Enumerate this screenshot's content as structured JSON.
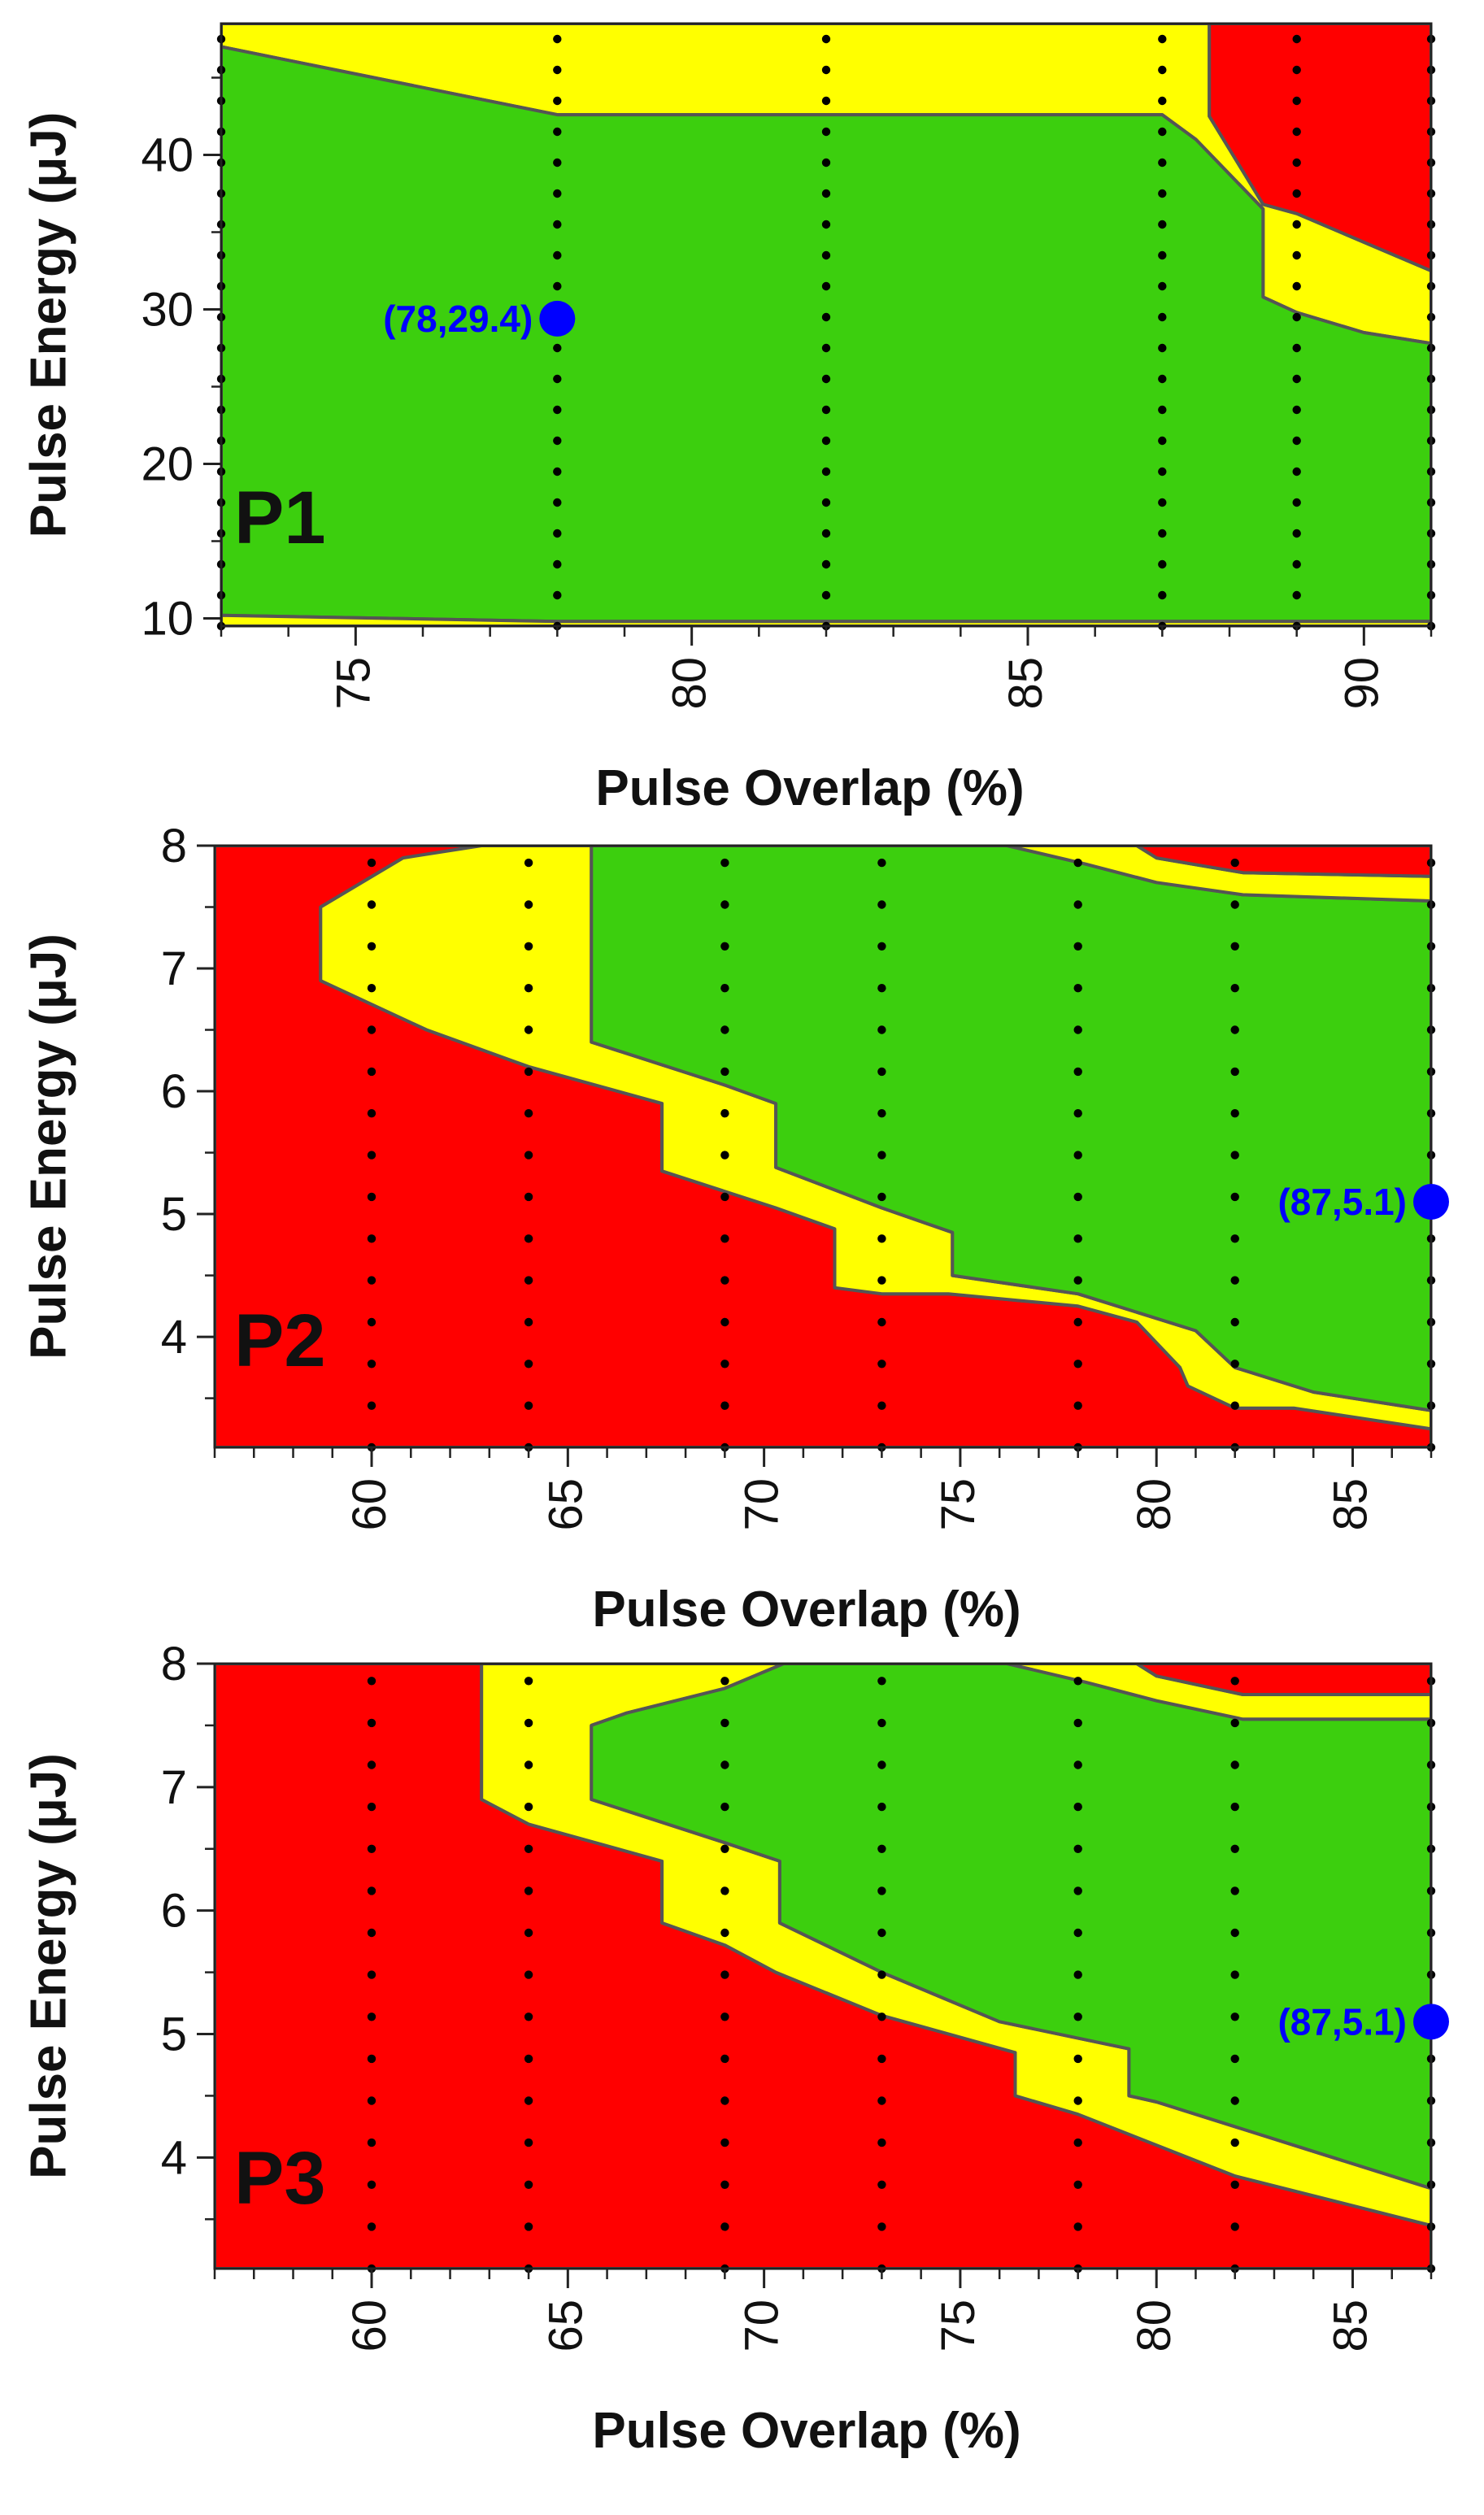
{
  "colors": {
    "red": "#FF0000",
    "yellow": "#FFFF00",
    "green": "#3CCF0E",
    "boundary": "#555555",
    "marker": "#0000FF"
  },
  "chart_data": [
    {
      "id": "P1",
      "type": "contour",
      "panel_label": "P1",
      "xlabel": "Pulse Overlap (%)",
      "ylabel": "Pulse Energy (μJ)",
      "xlim": [
        73,
        91
      ],
      "ylim": [
        9.5,
        48.5
      ],
      "xticks": [
        75,
        80,
        85,
        90
      ],
      "yticks": [
        10,
        20,
        30,
        40
      ],
      "highlight": {
        "x": 78,
        "y": 29.4,
        "label": "(78,29.4)"
      },
      "sample_columns": [
        73,
        78,
        82,
        87,
        89,
        91
      ],
      "sample_rows": [
        9.5,
        11.5,
        13.5,
        15.5,
        17.5,
        19.5,
        21.5,
        23.5,
        25.5,
        27.5,
        29.5,
        31.5,
        33.5,
        35.5,
        37.5,
        39.5,
        41.5,
        43.5,
        45.5,
        47.5
      ],
      "regions": [
        {
          "color": "yellow",
          "points": [
            [
              73,
              48.5
            ],
            [
              87.7,
              48.5
            ],
            [
              87.7,
              42.5
            ],
            [
              88.5,
              36.8
            ],
            [
              89.0,
              36.2
            ],
            [
              91,
              32.5
            ],
            [
              91,
              27.8
            ],
            [
              90,
              28.5
            ],
            [
              89,
              29.8
            ],
            [
              88.5,
              30.8
            ],
            [
              88.5,
              36.5
            ],
            [
              87.5,
              41
            ],
            [
              87,
              42.6
            ],
            [
              78,
              42.6
            ],
            [
              73,
              47
            ]
          ]
        },
        {
          "color": "red",
          "points": [
            [
              87.7,
              48.5
            ],
            [
              91,
              48.5
            ],
            [
              91,
              32.5
            ],
            [
              89.0,
              36.2
            ],
            [
              88.5,
              36.8
            ],
            [
              87.7,
              42.5
            ]
          ]
        },
        {
          "color": "green",
          "points": [
            [
              73,
              47
            ],
            [
              78,
              42.6
            ],
            [
              87,
              42.6
            ],
            [
              87.5,
              41
            ],
            [
              88.5,
              36.5
            ],
            [
              88.5,
              30.8
            ],
            [
              89,
              29.8
            ],
            [
              90,
              28.5
            ],
            [
              91,
              27.8
            ],
            [
              91,
              9.8
            ],
            [
              78,
              9.8
            ],
            [
              73,
              10.2
            ]
          ]
        },
        {
          "color": "yellow",
          "points": [
            [
              73,
              10.2
            ],
            [
              78,
              9.8
            ],
            [
              91,
              9.8
            ],
            [
              91,
              9.5
            ],
            [
              73,
              9.5
            ]
          ]
        }
      ]
    },
    {
      "id": "P2",
      "type": "contour",
      "panel_label": "P2",
      "xlabel": "Pulse Overlap (%)",
      "ylabel": "Pulse Energy (μJ)",
      "xlim": [
        56,
        87
      ],
      "ylim": [
        3.1,
        8
      ],
      "xticks": [
        60,
        65,
        70,
        75,
        80,
        85
      ],
      "yticks": [
        4,
        5,
        6,
        7,
        8
      ],
      "highlight": {
        "x": 87,
        "y": 5.1,
        "label": "(87,5.1)"
      },
      "sample_columns": [
        60,
        64,
        69,
        73,
        78,
        82,
        87
      ],
      "sample_rows": [
        3.1,
        3.44,
        3.78,
        4.12,
        4.46,
        4.8,
        5.14,
        5.48,
        5.82,
        6.16,
        6.5,
        6.84,
        7.18,
        7.52,
        7.86
      ],
      "regions": [
        {
          "color": "red",
          "points": [
            [
              56,
              8
            ],
            [
              56,
              3.1
            ],
            [
              87,
              3.1
            ],
            [
              87,
              3.25
            ],
            [
              83.5,
              3.42
            ],
            [
              82,
              3.42
            ],
            [
              80.8,
              3.6
            ],
            [
              80.6,
              3.75
            ],
            [
              79.5,
              4.12
            ],
            [
              78,
              4.25
            ],
            [
              74.7,
              4.35
            ],
            [
              73,
              4.35
            ],
            [
              71.8,
              4.4
            ],
            [
              71.8,
              4.88
            ],
            [
              70.3,
              5.05
            ],
            [
              67.4,
              5.35
            ],
            [
              67.4,
              5.9
            ],
            [
              64,
              6.2
            ],
            [
              61.4,
              6.5
            ],
            [
              58.7,
              6.9
            ],
            [
              58.7,
              7.5
            ],
            [
              60.8,
              7.9
            ],
            [
              62.8,
              8
            ]
          ]
        },
        {
          "color": "yellow",
          "points": [
            [
              62.8,
              8
            ],
            [
              60.8,
              7.9
            ],
            [
              58.7,
              7.5
            ],
            [
              58.7,
              6.9
            ],
            [
              61.4,
              6.5
            ],
            [
              64,
              6.2
            ],
            [
              67.4,
              5.9
            ],
            [
              67.4,
              5.35
            ],
            [
              70.3,
              5.05
            ],
            [
              71.8,
              4.88
            ],
            [
              71.8,
              4.4
            ],
            [
              73,
              4.35
            ],
            [
              74.7,
              4.35
            ],
            [
              78,
              4.25
            ],
            [
              79.5,
              4.12
            ],
            [
              80.6,
              3.75
            ],
            [
              80.8,
              3.6
            ],
            [
              82,
              3.42
            ],
            [
              83.5,
              3.42
            ],
            [
              87,
              3.25
            ],
            [
              87,
              3.4
            ],
            [
              84,
              3.55
            ],
            [
              82,
              3.75
            ],
            [
              81,
              4.05
            ],
            [
              78,
              4.35
            ],
            [
              74.8,
              4.5
            ],
            [
              74.8,
              4.85
            ],
            [
              73,
              5.05
            ],
            [
              70.3,
              5.38
            ],
            [
              70.3,
              5.9
            ],
            [
              69,
              6.05
            ],
            [
              65.6,
              6.4
            ],
            [
              65.6,
              8
            ]
          ]
        },
        {
          "color": "green",
          "points": [
            [
              65.6,
              8
            ],
            [
              65.6,
              6.4
            ],
            [
              69,
              6.05
            ],
            [
              70.3,
              5.9
            ],
            [
              70.3,
              5.38
            ],
            [
              73,
              5.05
            ],
            [
              74.8,
              4.85
            ],
            [
              74.8,
              4.5
            ],
            [
              78,
              4.35
            ],
            [
              81,
              4.05
            ],
            [
              82,
              3.75
            ],
            [
              84,
              3.55
            ],
            [
              87,
              3.4
            ],
            [
              87,
              7.55
            ],
            [
              82.2,
              7.6
            ],
            [
              80,
              7.7
            ],
            [
              78.2,
              7.85
            ],
            [
              76.2,
              8
            ]
          ]
        },
        {
          "color": "yellow",
          "points": [
            [
              76.2,
              8
            ],
            [
              78.2,
              7.85
            ],
            [
              80,
              7.7
            ],
            [
              82.2,
              7.6
            ],
            [
              87,
              7.55
            ],
            [
              87,
              7.75
            ],
            [
              82.2,
              7.78
            ],
            [
              80,
              7.9
            ],
            [
              79.5,
              8
            ]
          ]
        },
        {
          "color": "red",
          "points": [
            [
              79.5,
              8
            ],
            [
              80,
              7.9
            ],
            [
              82.2,
              7.78
            ],
            [
              87,
              7.75
            ],
            [
              87,
              8
            ]
          ]
        }
      ]
    },
    {
      "id": "P3",
      "type": "contour",
      "panel_label": "P3",
      "xlabel": "Pulse Overlap (%)",
      "ylabel": "Pulse Energy (μJ)",
      "xlim": [
        56,
        87
      ],
      "ylim": [
        3.1,
        8
      ],
      "xticks": [
        60,
        65,
        70,
        75,
        80,
        85
      ],
      "yticks": [
        4,
        5,
        6,
        7,
        8
      ],
      "highlight": {
        "x": 87,
        "y": 5.1,
        "label": "(87,5.1)"
      },
      "sample_columns": [
        60,
        64,
        69,
        73,
        78,
        82,
        87
      ],
      "sample_rows": [
        3.1,
        3.44,
        3.78,
        4.12,
        4.46,
        4.8,
        5.14,
        5.48,
        5.82,
        6.16,
        6.5,
        6.84,
        7.18,
        7.52,
        7.86
      ],
      "regions": [
        {
          "color": "red",
          "points": [
            [
              56,
              8
            ],
            [
              56,
              3.1
            ],
            [
              87,
              3.1
            ],
            [
              87,
              3.45
            ],
            [
              82,
              3.85
            ],
            [
              78,
              4.35
            ],
            [
              76.4,
              4.5
            ],
            [
              76.4,
              4.85
            ],
            [
              73,
              5.15
            ],
            [
              70.3,
              5.5
            ],
            [
              69,
              5.72
            ],
            [
              67.4,
              5.9
            ],
            [
              67.4,
              6.4
            ],
            [
              64,
              6.7
            ],
            [
              62.8,
              6.9
            ],
            [
              62.8,
              8
            ]
          ]
        },
        {
          "color": "yellow",
          "points": [
            [
              62.8,
              8
            ],
            [
              62.8,
              6.9
            ],
            [
              64,
              6.7
            ],
            [
              67.4,
              6.4
            ],
            [
              67.4,
              5.9
            ],
            [
              69,
              5.72
            ],
            [
              70.3,
              5.5
            ],
            [
              73,
              5.15
            ],
            [
              76.4,
              4.85
            ],
            [
              76.4,
              4.5
            ],
            [
              78,
              4.35
            ],
            [
              82,
              3.85
            ],
            [
              87,
              3.45
            ],
            [
              87,
              3.75
            ],
            [
              84,
              4.05
            ],
            [
              80,
              4.45
            ],
            [
              79.3,
              4.5
            ],
            [
              79.3,
              4.88
            ],
            [
              76,
              5.1
            ],
            [
              73,
              5.5
            ],
            [
              70.4,
              5.9
            ],
            [
              70.4,
              6.4
            ],
            [
              69,
              6.55
            ],
            [
              65.6,
              6.9
            ],
            [
              65.6,
              7.5
            ],
            [
              66.5,
              7.6
            ],
            [
              69,
              7.8
            ],
            [
              70.5,
              8
            ]
          ]
        },
        {
          "color": "green",
          "points": [
            [
              70.5,
              8
            ],
            [
              69,
              7.8
            ],
            [
              66.5,
              7.6
            ],
            [
              65.6,
              7.5
            ],
            [
              65.6,
              6.9
            ],
            [
              69,
              6.55
            ],
            [
              70.4,
              6.4
            ],
            [
              70.4,
              5.9
            ],
            [
              73,
              5.5
            ],
            [
              76,
              5.1
            ],
            [
              79.3,
              4.88
            ],
            [
              79.3,
              4.5
            ],
            [
              80,
              4.45
            ],
            [
              84,
              4.05
            ],
            [
              87,
              3.75
            ],
            [
              87,
              7.55
            ],
            [
              82.2,
              7.55
            ],
            [
              80,
              7.7
            ],
            [
              78.2,
              7.85
            ],
            [
              76.2,
              8
            ]
          ]
        },
        {
          "color": "yellow",
          "points": [
            [
              76.2,
              8
            ],
            [
              78.2,
              7.85
            ],
            [
              80,
              7.7
            ],
            [
              82.2,
              7.55
            ],
            [
              87,
              7.55
            ],
            [
              87,
              7.75
            ],
            [
              82.2,
              7.75
            ],
            [
              80,
              7.9
            ],
            [
              79.5,
              8
            ]
          ]
        },
        {
          "color": "red",
          "points": [
            [
              79.5,
              8
            ],
            [
              80,
              7.9
            ],
            [
              82.2,
              7.75
            ],
            [
              87,
              7.75
            ],
            [
              87,
              8
            ]
          ]
        }
      ]
    }
  ]
}
